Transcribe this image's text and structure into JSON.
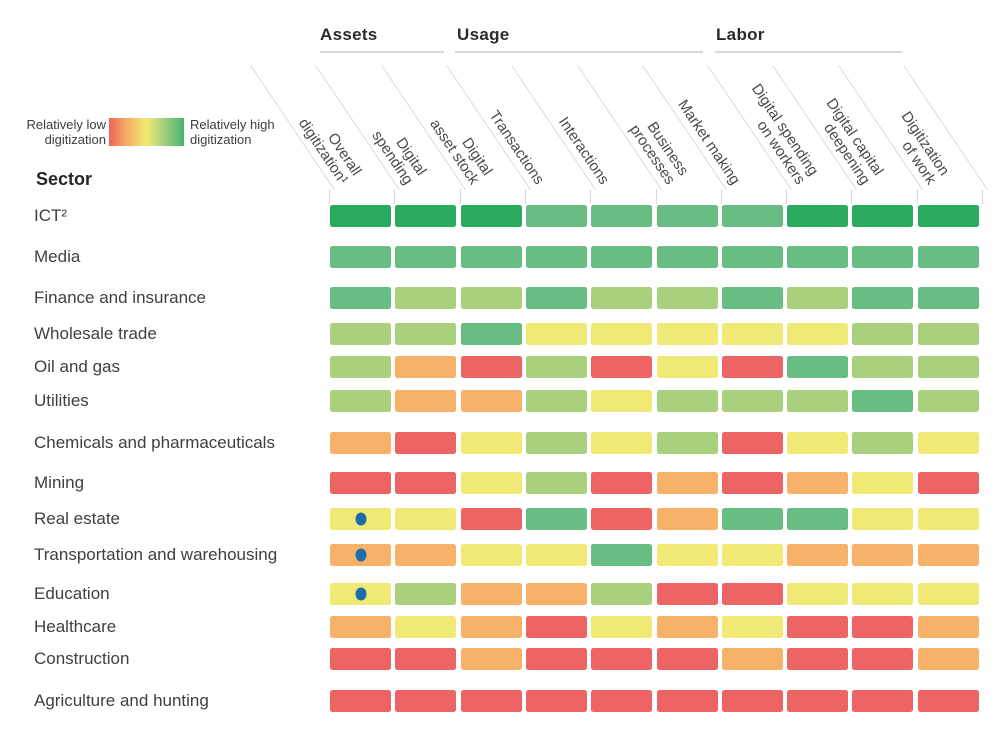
{
  "legend": {
    "low": "Relatively low digitization",
    "high": "Relatively high digitization"
  },
  "sector_header": "Sector",
  "chart_data": {
    "type": "heatmap",
    "description": "Sector digitization heatmap; each cell color encodes relative digitization from relatively low (red) through orange and yellow to relatively high (green); blue dots mark the Overall digitization cell of three sectors",
    "column_groups": [
      {
        "label": "Assets",
        "columns": [
          "Digital spending",
          "Digital asset stock"
        ]
      },
      {
        "label": "Usage",
        "columns": [
          "Transactions",
          "Interactions",
          "Business processes",
          "Market making"
        ]
      },
      {
        "label": "Labor",
        "columns": [
          "Digital spending on workers",
          "Digital capital deepening",
          "Digitization of work"
        ]
      }
    ],
    "columns": [
      "Overall digitization¹",
      "Digital spending",
      "Digital asset stock",
      "Transactions",
      "Interactions",
      "Business processes",
      "Market making",
      "Digital spending on workers",
      "Digital capital deepening",
      "Digitization of work"
    ],
    "column_label_lines": [
      [
        "Overall",
        "digitization¹"
      ],
      [
        "Digital",
        "spending"
      ],
      [
        "Digital",
        "asset stock"
      ],
      [
        "Transactions"
      ],
      [
        "Interactions"
      ],
      [
        "Business",
        "processes"
      ],
      [
        "Market making"
      ],
      [
        "Digital spending",
        "on workers"
      ],
      [
        "Digital capital",
        "deepening"
      ],
      [
        "Digitization",
        "of work"
      ]
    ],
    "rows": [
      "ICT²",
      "Media",
      "Finance and insurance",
      "Wholesale trade",
      "Oil and gas",
      "Utilities",
      "Chemicals and pharmaceuticals",
      "Mining",
      "Real estate",
      "Transportation and warehousing",
      "Education",
      "Healthcare",
      "Construction",
      "Agriculture and hunting"
    ],
    "levels": {
      "G": "#2ba95f",
      "g": "#67bd82",
      "l": "#a9d07d",
      "y": "#f0e975",
      "o": "#f8b168",
      "r": "#ed6465"
    },
    "level_meaning": {
      "G": "relatively high",
      "g": "high-medium",
      "l": "medium",
      "y": "medium-low",
      "o": "low-medium",
      "r": "relatively low"
    },
    "values": [
      [
        "G",
        "G",
        "G",
        "g",
        "g",
        "g",
        "g",
        "G",
        "G",
        "G"
      ],
      [
        "g",
        "g",
        "g",
        "g",
        "g",
        "g",
        "g",
        "g",
        "g",
        "g"
      ],
      [
        "g",
        "l",
        "l",
        "g",
        "l",
        "l",
        "g",
        "l",
        "g",
        "g"
      ],
      [
        "l",
        "l",
        "g",
        "y",
        "y",
        "y",
        "y",
        "y",
        "l",
        "l"
      ],
      [
        "l",
        "o",
        "r",
        "l",
        "r",
        "y",
        "r",
        "g",
        "l",
        "l"
      ],
      [
        "l",
        "o",
        "o",
        "l",
        "y",
        "l",
        "l",
        "l",
        "g",
        "l"
      ],
      [
        "o",
        "r",
        "y",
        "l",
        "y",
        "l",
        "r",
        "y",
        "l",
        "y"
      ],
      [
        "r",
        "r",
        "y",
        "l",
        "r",
        "o",
        "r",
        "o",
        "y",
        "r"
      ],
      [
        "y",
        "y",
        "r",
        "g",
        "r",
        "o",
        "g",
        "g",
        "y",
        "y"
      ],
      [
        "o",
        "o",
        "y",
        "y",
        "g",
        "y",
        "y",
        "o",
        "o",
        "o"
      ],
      [
        "y",
        "l",
        "o",
        "o",
        "l",
        "r",
        "r",
        "y",
        "y",
        "y"
      ],
      [
        "o",
        "y",
        "o",
        "r",
        "y",
        "o",
        "y",
        "r",
        "r",
        "o"
      ],
      [
        "r",
        "r",
        "o",
        "r",
        "r",
        "r",
        "o",
        "r",
        "r",
        "o"
      ],
      [
        "r",
        "r",
        "r",
        "r",
        "r",
        "r",
        "r",
        "r",
        "r",
        "r"
      ]
    ],
    "dots": [
      {
        "row": "Real estate",
        "column": "Overall digitization¹"
      },
      {
        "row": "Transportation and warehousing",
        "column": "Overall digitization¹"
      },
      {
        "row": "Education",
        "column": "Overall digitization¹"
      }
    ],
    "dot_color": "#1d6dad",
    "legend_gradient": [
      "#ec6557",
      "#f0ea74",
      "#46b26e"
    ]
  }
}
